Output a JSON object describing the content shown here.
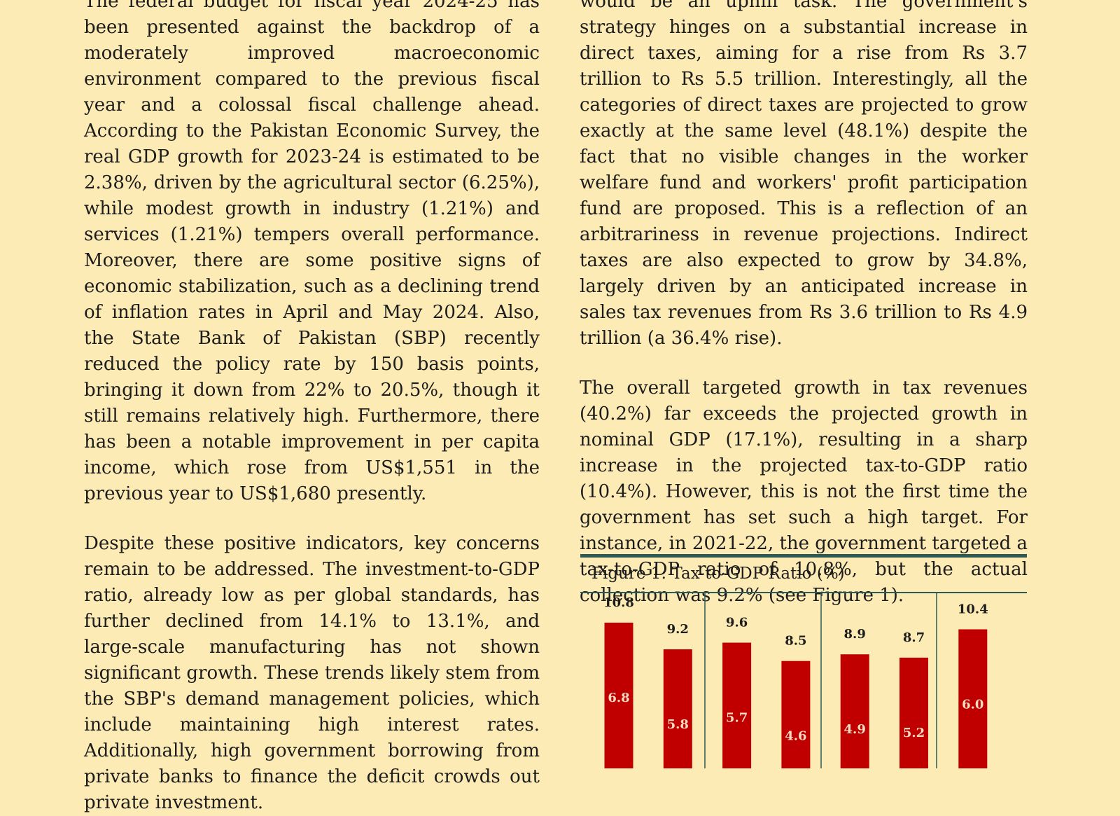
{
  "document": {
    "left_column": {
      "paragraphs": [
        "The federal budget for fiscal year 2024-25 has been presented against the backdrop of a moderately improved macroeconomic environment compared to the previous fiscal year and a colossal fiscal challenge ahead. According to the Pakistan Economic Survey, the real GDP growth for 2023-24 is estimated to be 2.38%, driven by the agricultural sector (6.25%), while modest growth in industry (1.21%) and services (1.21%) tempers overall performance. Moreover, there are some positive signs of economic stabilization, such as a declining trend of inflation rates in April and May 2024. Also, the State Bank of Pakistan (SBP) recently reduced the policy rate by 150 basis points, bringing it down from 22% to 20.5%, though it still remains relatively high. Furthermore, there has been a notable improvement in per capita income, which rose from US$1,551 in the previous year to US$1,680 presently.",
        "Despite these positive indicators, key concerns remain to be addressed. The investment-to-GDP ratio, already low as per global standards, has further declined from 14.1% to 13.1%, and large-scale manufacturing has not shown significant growth. These trends likely stem from the SBP's demand management policies, which include maintaining high interest rates. Additionally, high government borrowing from private banks to finance the deficit crowds out private investment."
      ]
    },
    "right_column": {
      "paragraphs": [
        "would be an uphill task. The government's strategy hinges on a substantial increase in direct taxes, aiming for a rise from Rs 3.7 trillion to Rs 5.5 trillion. Interestingly, all the categories of direct taxes are projected to grow exactly at the same level (48.1%) despite the fact that no visible changes in the worker welfare fund and workers' profit participation fund are proposed. This is a reflection of an arbitrariness in revenue projections. Indirect taxes are also expected to grow by 34.8%, largely driven by an anticipated increase in sales tax revenues from Rs 3.6 trillion to Rs 4.9 trillion (a 36.4% rise).",
        "The overall targeted growth in tax revenues (40.2%) far exceeds the projected growth in nominal GDP (17.1%), resulting in a sharp increase in the projected tax-to-GDP ratio (10.4%). However, this is not the first time the government has set such a high target. For instance, in 2021-22, the government targeted a tax-to-GDP ratio of 10.8%, but the actual collection was 9.2% (see Figure 1)."
      ]
    },
    "figure": {
      "title": "Figure 1: Tax-to-GDP Ratio (%)"
    }
  },
  "chart_data": {
    "type": "bar",
    "title": "Figure 1: Tax-to-GDP Ratio (%)",
    "series": [
      {
        "values": [
          10.8,
          9.2,
          9.6,
          8.5,
          8.9,
          8.7,
          10.4
        ]
      },
      {
        "values": [
          6.8,
          5.8,
          5.7,
          4.6,
          4.9,
          5.2,
          6.0
        ]
      }
    ],
    "colors": {
      "bar": "#c00000",
      "inner_label": "#f6dcc0",
      "divider": "#2e5a55"
    }
  }
}
